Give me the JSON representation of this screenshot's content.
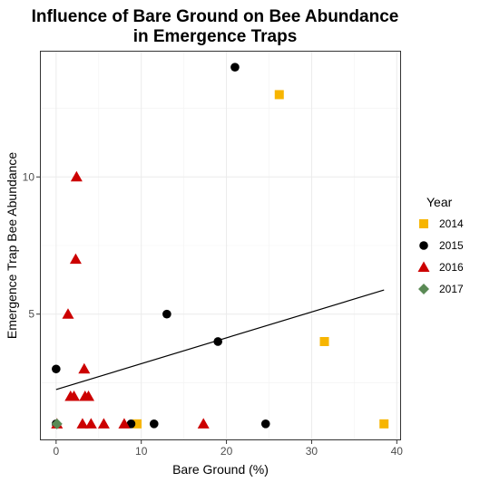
{
  "chart_data": {
    "type": "scatter",
    "title_lines": [
      "Influence of Bare Ground on Bee Abundance",
      "in Emergence Traps"
    ],
    "xlabel": "Bare Ground (%)",
    "ylabel": "Emergence Trap Bee Abundance",
    "xlim": [
      -1.9,
      40.5
    ],
    "ylim": [
      0.4,
      14.6
    ],
    "x_ticks": [
      0,
      10,
      20,
      30,
      40
    ],
    "y_ticks": [
      5,
      10
    ],
    "grid": true,
    "legend": {
      "title": "Year",
      "placement": "right"
    },
    "series": [
      {
        "name": "2014",
        "color": "#F7B500",
        "marker": "square",
        "points": [
          [
            26.2,
            13
          ],
          [
            31.5,
            4
          ],
          [
            38.5,
            1
          ],
          [
            9.5,
            1
          ]
        ]
      },
      {
        "name": "2015",
        "color": "#000000",
        "marker": "circle",
        "points": [
          [
            21,
            14
          ],
          [
            13,
            5
          ],
          [
            19,
            4
          ],
          [
            0,
            3
          ],
          [
            8.8,
            1
          ],
          [
            11.5,
            1
          ],
          [
            24.6,
            1
          ],
          [
            0,
            1
          ]
        ]
      },
      {
        "name": "2016",
        "color": "#CC0000",
        "marker": "triangle",
        "points": [
          [
            2.4,
            10
          ],
          [
            2.3,
            7
          ],
          [
            1.4,
            5
          ],
          [
            3.3,
            3
          ],
          [
            1.7,
            2
          ],
          [
            2.1,
            2
          ],
          [
            3.4,
            2
          ],
          [
            3.8,
            2
          ],
          [
            0.1,
            1
          ],
          [
            3.1,
            1
          ],
          [
            4.1,
            1
          ],
          [
            5.6,
            1
          ],
          [
            8.0,
            1
          ],
          [
            17.3,
            1
          ]
        ]
      },
      {
        "name": "2017",
        "color": "#5A8A55",
        "marker": "diamond",
        "points": [
          [
            0.1,
            1
          ]
        ]
      }
    ],
    "trendline": {
      "type": "linear",
      "color": "#000000",
      "x": [
        0,
        38.5
      ],
      "y": [
        2.25,
        5.88
      ]
    }
  }
}
